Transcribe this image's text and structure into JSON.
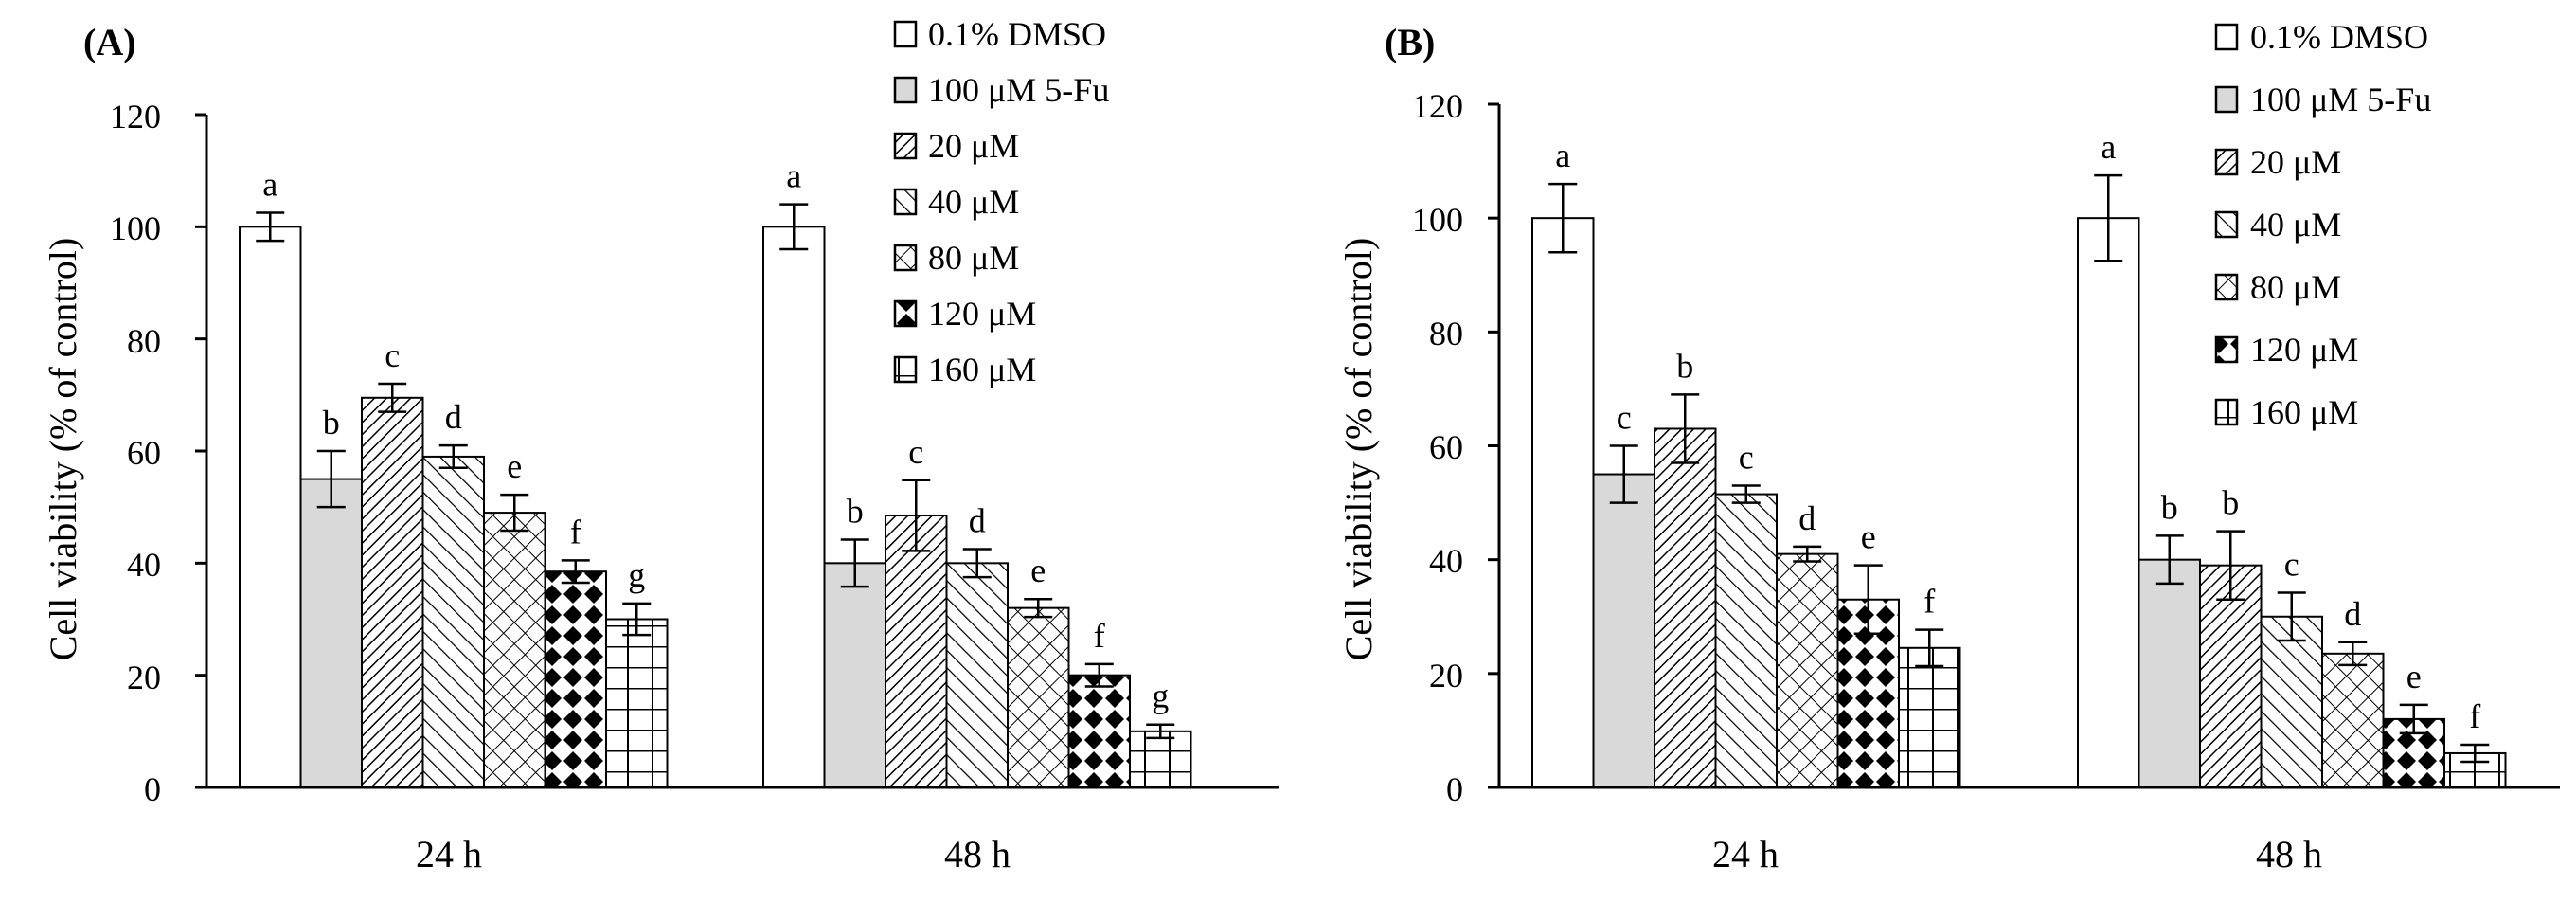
{
  "chart_data": [
    {
      "panel_label": "(A)",
      "type": "bar",
      "ylabel": "Cell viability (% of control)",
      "ylim": [
        0,
        120
      ],
      "yticks": [
        "0",
        "20",
        "40",
        "60",
        "80",
        "100",
        "120"
      ],
      "categories": [
        "24 h",
        "48 h"
      ],
      "legend": [
        "0.1% DMSO",
        "100 μM 5-Fu",
        "20 μM",
        "40 μM",
        "80 μM",
        "120 μM",
        "160 μM"
      ],
      "series": [
        {
          "name": "0.1% DMSO",
          "values": [
            100,
            100
          ],
          "errors": [
            2.5,
            4
          ],
          "letters": [
            "a",
            "a"
          ]
        },
        {
          "name": "100 μM 5-Fu",
          "values": [
            55,
            40
          ],
          "errors": [
            5,
            4.2
          ],
          "letters": [
            "b",
            "b"
          ]
        },
        {
          "name": "20 μM",
          "values": [
            69.5,
            48.5
          ],
          "errors": [
            2.5,
            6.3
          ],
          "letters": [
            "c",
            "c"
          ]
        },
        {
          "name": "40 μM",
          "values": [
            59,
            40
          ],
          "errors": [
            2,
            2.5
          ],
          "letters": [
            "d",
            "d"
          ]
        },
        {
          "name": "80 μM",
          "values": [
            49,
            32
          ],
          "errors": [
            3.2,
            1.6
          ],
          "letters": [
            "e",
            "e"
          ]
        },
        {
          "name": "120 μM",
          "values": [
            38.5,
            20
          ],
          "errors": [
            2,
            2
          ],
          "letters": [
            "f",
            "f"
          ]
        },
        {
          "name": "160 μM",
          "values": [
            30,
            10
          ],
          "errors": [
            2.8,
            1.2
          ],
          "letters": [
            "g",
            "g"
          ]
        }
      ]
    },
    {
      "panel_label": "(B)",
      "type": "bar",
      "ylabel": "Cell viability (% of control)",
      "ylim": [
        0,
        120
      ],
      "yticks": [
        "0",
        "20",
        "40",
        "60",
        "80",
        "100",
        "120"
      ],
      "categories": [
        "24 h",
        "48 h"
      ],
      "legend": [
        "0.1% DMSO",
        "100 μM 5-Fu",
        "20 μM",
        "40 μM",
        "80 μM",
        "120 μM",
        "160 μM"
      ],
      "series": [
        {
          "name": "0.1% DMSO",
          "values": [
            100,
            100
          ],
          "errors": [
            6,
            7.5
          ],
          "letters": [
            "a",
            "a"
          ]
        },
        {
          "name": "100 μM 5-Fu",
          "values": [
            55,
            40
          ],
          "errors": [
            5,
            4.2
          ],
          "letters": [
            "c",
            "b"
          ]
        },
        {
          "name": "20 μM",
          "values": [
            63,
            39
          ],
          "errors": [
            6,
            6
          ],
          "letters": [
            "b",
            "b"
          ]
        },
        {
          "name": "40 μM",
          "values": [
            51.5,
            30
          ],
          "errors": [
            1.5,
            4.2
          ],
          "letters": [
            "c",
            "c"
          ]
        },
        {
          "name": "80 μM",
          "values": [
            41,
            23.5
          ],
          "errors": [
            1.3,
            2
          ],
          "letters": [
            "d",
            "d"
          ]
        },
        {
          "name": "120 μM",
          "values": [
            33,
            12
          ],
          "errors": [
            6,
            2.5
          ],
          "letters": [
            "e",
            "e"
          ]
        },
        {
          "name": "160 μM",
          "values": [
            24.5,
            6
          ],
          "errors": [
            3.2,
            1.5
          ],
          "letters": [
            "f",
            "f"
          ]
        }
      ]
    }
  ]
}
